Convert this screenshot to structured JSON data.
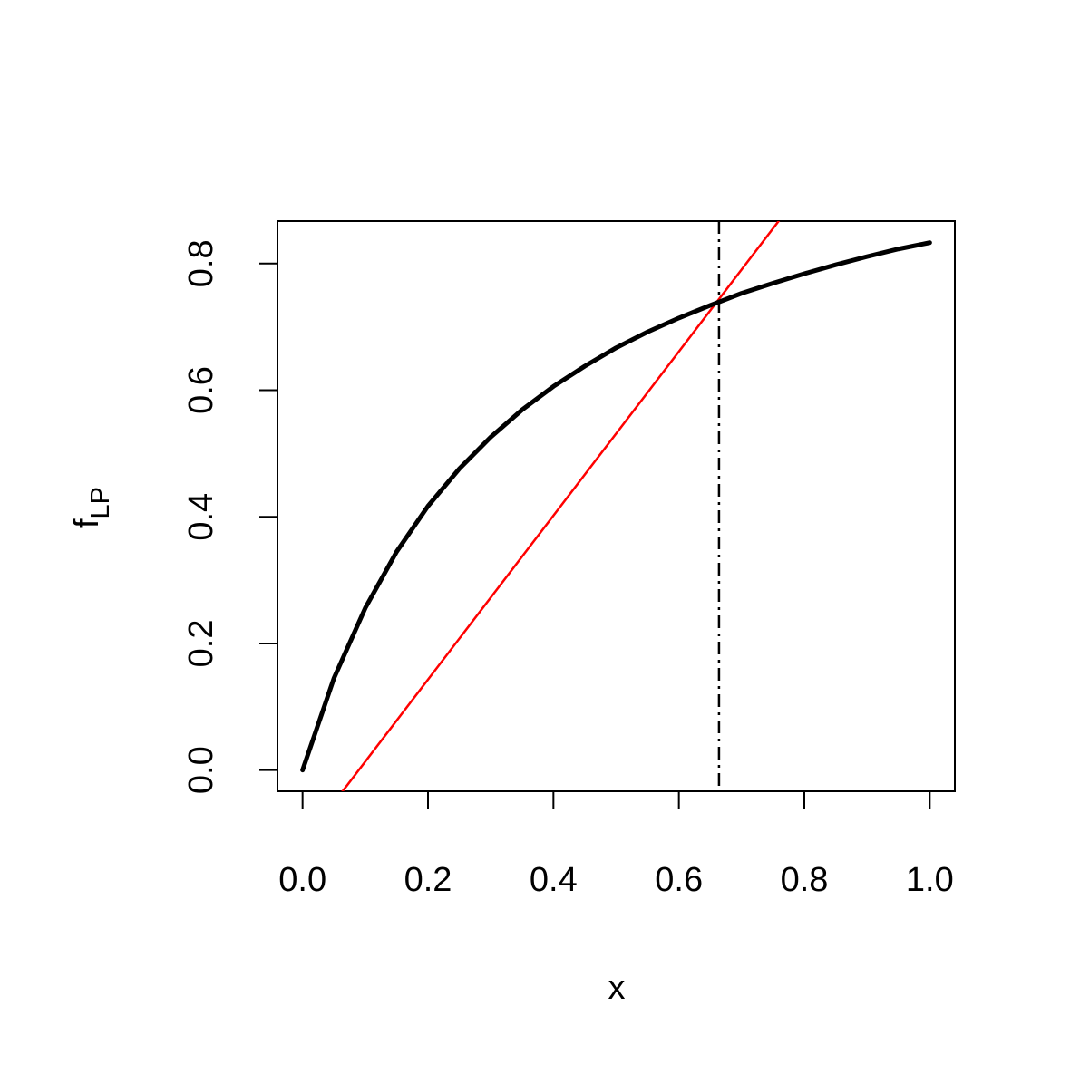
{
  "chart_data": {
    "type": "line",
    "xlabel": "x",
    "ylabel": {
      "main": "f",
      "sub": "LP"
    },
    "xlim": [
      -0.04,
      1.04
    ],
    "ylim": [
      -0.0334,
      0.867
    ],
    "xticks": [
      {
        "value": 0,
        "label": "0.0"
      },
      0.2,
      0.4,
      0.6,
      0.8,
      {
        "value": 1,
        "label": "1.0"
      }
    ],
    "yticks": [
      {
        "value": 0,
        "label": "0.0"
      },
      0.2,
      0.4,
      0.6,
      0.8
    ],
    "x": [
      0,
      0.05,
      0.1,
      0.15,
      0.2,
      0.25,
      0.3,
      0.35,
      0.4,
      0.45,
      0.5,
      0.55,
      0.6,
      0.65,
      0.7,
      0.75,
      0.8,
      0.85,
      0.9,
      0.95,
      1
    ],
    "series": [
      {
        "color": "#000000",
        "values": [
          0,
          0.145,
          0.256,
          0.345,
          0.417,
          0.476,
          0.526,
          0.569,
          0.606,
          0.638,
          0.667,
          0.692,
          0.714,
          0.734,
          0.753,
          0.769,
          0.784,
          0.798,
          0.811,
          0.823,
          0.833
        ]
      }
    ],
    "line": {
      "color": "#ff0000",
      "x": [
        0,
        1
      ],
      "values": [
        -0.116,
        1.179
      ]
    },
    "vline": 0.664
  }
}
